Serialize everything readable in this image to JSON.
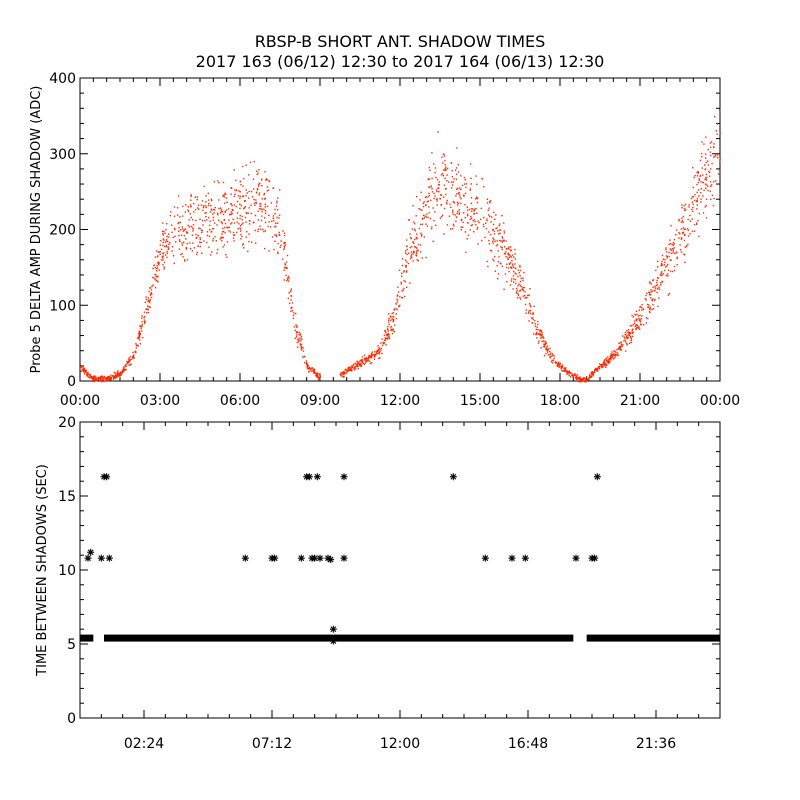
{
  "title": "RBSP-B SHORT ANT. SHADOW TIMES",
  "subtitle": "2017 163 (06/12) 12:30 to 2017 164 (06/13) 12:30",
  "colors": {
    "panel1_points": "#ff2a00",
    "panel2_points": "#000000",
    "axes": "#000000"
  },
  "chart_data": [
    {
      "type": "scatter",
      "ylabel": "Probe 5 DELTA AMP DURING SHADOW (ADC)",
      "xlabel": "",
      "ylim": [
        0,
        400
      ],
      "xlim_hours": [
        0,
        24
      ],
      "x_tick_labels": [
        "00:00",
        "03:00",
        "06:00",
        "09:00",
        "12:00",
        "15:00",
        "18:00",
        "21:00",
        "00:00"
      ],
      "y_tick_labels": [
        "0",
        "100",
        "200",
        "300",
        "400"
      ],
      "y_tick_values": [
        0,
        100,
        200,
        300,
        400
      ],
      "profile": [
        {
          "x": 0.0,
          "y": 20
        },
        {
          "x": 0.3,
          "y": 8
        },
        {
          "x": 0.6,
          "y": 3
        },
        {
          "x": 1.0,
          "y": 4
        },
        {
          "x": 1.5,
          "y": 10
        },
        {
          "x": 2.0,
          "y": 35
        },
        {
          "x": 2.5,
          "y": 100
        },
        {
          "x": 3.0,
          "y": 170
        },
        {
          "x": 3.5,
          "y": 190
        },
        {
          "x": 4.5,
          "y": 210
        },
        {
          "x": 5.5,
          "y": 222
        },
        {
          "x": 6.5,
          "y": 230
        },
        {
          "x": 7.2,
          "y": 225
        },
        {
          "x": 7.6,
          "y": 180
        },
        {
          "x": 8.0,
          "y": 80
        },
        {
          "x": 8.5,
          "y": 20
        },
        {
          "x": 9.0,
          "y": 5
        },
        {
          "x": 9.3,
          "y": 2
        },
        {
          "x": 9.8,
          "y": 10
        },
        {
          "x": 10.5,
          "y": 25
        },
        {
          "x": 11.2,
          "y": 40
        },
        {
          "x": 11.8,
          "y": 90
        },
        {
          "x": 12.3,
          "y": 170
        },
        {
          "x": 12.8,
          "y": 220
        },
        {
          "x": 13.5,
          "y": 260
        },
        {
          "x": 14.2,
          "y": 240
        },
        {
          "x": 15.0,
          "y": 215
        },
        {
          "x": 15.8,
          "y": 175
        },
        {
          "x": 16.5,
          "y": 130
        },
        {
          "x": 17.2,
          "y": 60
        },
        {
          "x": 17.8,
          "y": 25
        },
        {
          "x": 18.3,
          "y": 12
        },
        {
          "x": 18.7,
          "y": 3
        },
        {
          "x": 19.0,
          "y": 2
        },
        {
          "x": 19.3,
          "y": 15
        },
        {
          "x": 20.0,
          "y": 35
        },
        {
          "x": 20.8,
          "y": 75
        },
        {
          "x": 21.5,
          "y": 120
        },
        {
          "x": 22.2,
          "y": 170
        },
        {
          "x": 22.8,
          "y": 220
        },
        {
          "x": 23.4,
          "y": 270
        },
        {
          "x": 24.0,
          "y": 300
        }
      ]
    },
    {
      "type": "scatter",
      "ylabel": "TIME BETWEEN SHADOWS (SEC)",
      "xlabel": "",
      "ylim": [
        0,
        20
      ],
      "xlim_hours": [
        0,
        24
      ],
      "x_tick_labels": [
        "02:24",
        "07:12",
        "12:00",
        "16:48",
        "21:36"
      ],
      "x_tick_values": [
        2.4,
        7.2,
        12.0,
        16.8,
        21.6
      ],
      "y_tick_labels": [
        "0",
        "5",
        "10",
        "15",
        "20"
      ],
      "y_tick_values": [
        0,
        5,
        10,
        15,
        20
      ],
      "baseline": {
        "y": 5.4,
        "x_ranges": [
          [
            0.0,
            0.5
          ],
          [
            0.9,
            18.5
          ],
          [
            19.0,
            24.0
          ]
        ]
      },
      "points": [
        {
          "x": 0.3,
          "y": 10.8
        },
        {
          "x": 0.4,
          "y": 11.2
        },
        {
          "x": 0.8,
          "y": 10.8
        },
        {
          "x": 0.9,
          "y": 16.3
        },
        {
          "x": 1.0,
          "y": 16.3
        },
        {
          "x": 1.1,
          "y": 10.8
        },
        {
          "x": 6.2,
          "y": 10.8
        },
        {
          "x": 7.2,
          "y": 10.8
        },
        {
          "x": 7.3,
          "y": 10.8
        },
        {
          "x": 8.3,
          "y": 10.8
        },
        {
          "x": 8.5,
          "y": 16.3
        },
        {
          "x": 8.6,
          "y": 16.3
        },
        {
          "x": 8.7,
          "y": 10.8
        },
        {
          "x": 8.8,
          "y": 10.8
        },
        {
          "x": 8.9,
          "y": 16.3
        },
        {
          "x": 9.0,
          "y": 10.8
        },
        {
          "x": 9.3,
          "y": 10.8
        },
        {
          "x": 9.4,
          "y": 10.7
        },
        {
          "x": 9.5,
          "y": 6.0
        },
        {
          "x": 9.5,
          "y": 5.2
        },
        {
          "x": 9.9,
          "y": 16.3
        },
        {
          "x": 9.9,
          "y": 10.8
        },
        {
          "x": 14.0,
          "y": 16.3
        },
        {
          "x": 15.2,
          "y": 10.8
        },
        {
          "x": 16.2,
          "y": 10.8
        },
        {
          "x": 16.7,
          "y": 10.8
        },
        {
          "x": 18.6,
          "y": 10.8
        },
        {
          "x": 19.2,
          "y": 10.8
        },
        {
          "x": 19.3,
          "y": 10.8
        },
        {
          "x": 19.4,
          "y": 16.3
        }
      ]
    }
  ]
}
